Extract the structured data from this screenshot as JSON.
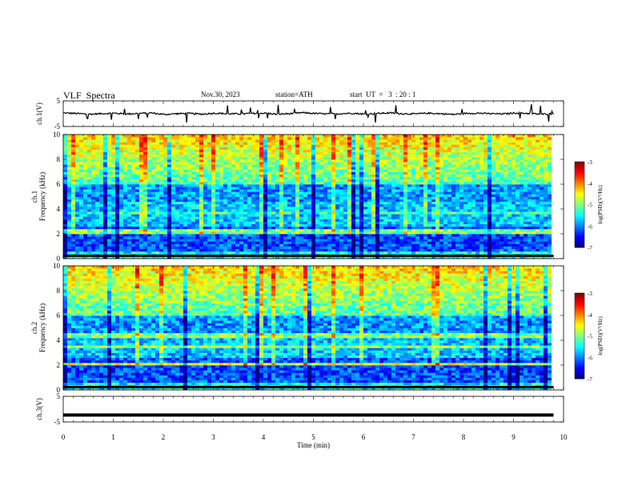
{
  "header": {
    "title": "VLF  Spectra",
    "date": "Nov.30, 2023",
    "station": "station=ATH",
    "start": "start  UT  =   3  : 20 : 1"
  },
  "chart_data": [
    {
      "type": "line",
      "name": "ch1-waveform",
      "ylabel": "ch.1(V)",
      "ylim": [
        -5,
        5
      ],
      "yticks": [
        "5",
        "-5"
      ],
      "xlim": [
        0,
        10
      ],
      "y": [
        0.3,
        0.1,
        -0.2,
        0.0,
        0.2,
        -0.1,
        0.1,
        0.3,
        -0.3,
        0.0,
        0.1,
        -0.2,
        0.2,
        0.0,
        -0.1,
        0.1,
        0.2,
        -0.2,
        0.0,
        0.4,
        0.1,
        -0.1,
        0.0,
        0.2,
        -0.2,
        0.1,
        0.3,
        0.0,
        -0.1,
        0.2,
        0.0,
        -0.3,
        0.1,
        0.2,
        0.0,
        -0.1,
        0.3,
        0.1,
        -0.2,
        0.0
      ],
      "line_color": "#000000"
    },
    {
      "type": "heatmap",
      "name": "ch1-spectrogram",
      "ylabel": "ch.1\nFrequency (kHz)",
      "ylim": [
        0,
        10
      ],
      "yticks": [
        "0",
        "2",
        "4",
        "6",
        "8",
        "10"
      ],
      "xlim": [
        0,
        10
      ],
      "colorbar": {
        "label": "log(PSD)(V²/Hz)",
        "range": [
          -7,
          -3
        ],
        "ticks": [
          "-3",
          "-4",
          "-5",
          "-6",
          "-7"
        ]
      }
    },
    {
      "type": "heatmap",
      "name": "ch2-spectrogram",
      "ylabel": "ch.2\nFrequency (kHz)",
      "ylim": [
        0,
        10
      ],
      "yticks": [
        "0",
        "2",
        "4",
        "6",
        "8",
        "10"
      ],
      "xlim": [
        0,
        10
      ],
      "colorbar": {
        "label": "log(PSD)(V²/Hz)",
        "range": [
          -7,
          -3
        ],
        "ticks": [
          "-3",
          "-4",
          "-5",
          "-6",
          "-7"
        ]
      }
    },
    {
      "type": "line",
      "name": "ch3-waveform",
      "ylabel": "ch.3(V)",
      "ylim": [
        -5,
        5
      ],
      "yticks": [
        "5",
        "-5"
      ],
      "xlim": [
        0,
        10
      ],
      "xlabel": "Time  (min)",
      "xticks": [
        "0",
        "1",
        "2",
        "3",
        "4",
        "5",
        "6",
        "7",
        "8",
        "9",
        "10"
      ],
      "y_constant": -2.3,
      "line_color": "#000000"
    }
  ]
}
